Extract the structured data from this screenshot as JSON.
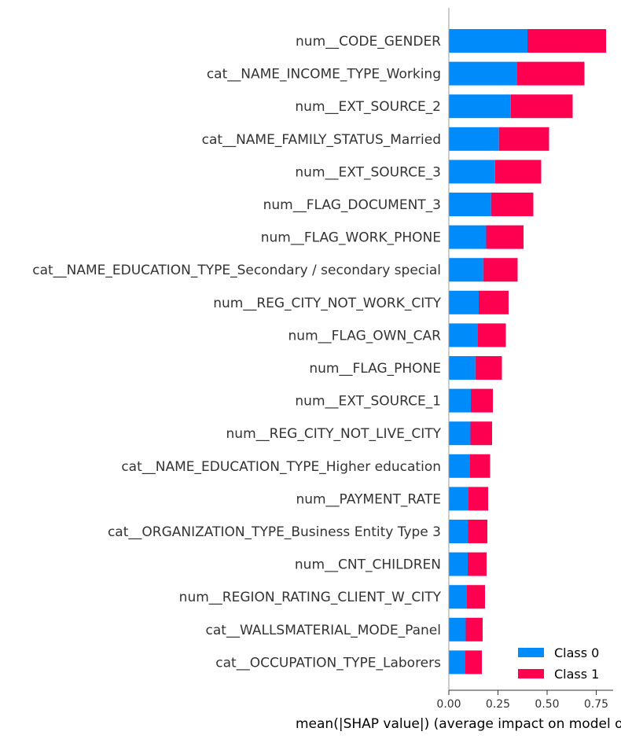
{
  "chart_data": {
    "type": "bar",
    "orientation": "horizontal",
    "stacked": true,
    "categories": [
      "num__CODE_GENDER",
      "cat__NAME_INCOME_TYPE_Working",
      "num__EXT_SOURCE_2",
      "cat__NAME_FAMILY_STATUS_Married",
      "num__EXT_SOURCE_3",
      "num__FLAG_DOCUMENT_3",
      "num__FLAG_WORK_PHONE",
      "cat__NAME_EDUCATION_TYPE_Secondary / secondary special",
      "num__REG_CITY_NOT_WORK_CITY",
      "num__FLAG_OWN_CAR",
      "num__FLAG_PHONE",
      "num__EXT_SOURCE_1",
      "num__REG_CITY_NOT_LIVE_CITY",
      "cat__NAME_EDUCATION_TYPE_Higher education",
      "num__PAYMENT_RATE",
      "cat__ORGANIZATION_TYPE_Business Entity Type 3",
      "num__CNT_CHILDREN",
      "num__REGION_RATING_CLIENT_W_CITY",
      "cat__WALLSMATERIAL_MODE_Panel",
      "cat__OCCUPATION_TYPE_Laborers"
    ],
    "series": [
      {
        "name": "Class 0",
        "color": "#008bfb",
        "values": [
          0.4,
          0.345,
          0.315,
          0.255,
          0.235,
          0.215,
          0.19,
          0.175,
          0.152,
          0.145,
          0.135,
          0.112,
          0.11,
          0.105,
          0.1,
          0.098,
          0.096,
          0.092,
          0.086,
          0.084
        ]
      },
      {
        "name": "Class 1",
        "color": "#ff0051",
        "values": [
          0.4,
          0.345,
          0.315,
          0.255,
          0.235,
          0.215,
          0.19,
          0.175,
          0.152,
          0.145,
          0.135,
          0.112,
          0.11,
          0.105,
          0.1,
          0.098,
          0.096,
          0.092,
          0.086,
          0.084
        ]
      }
    ],
    "xlabel": "mean(|SHAP value|) (average impact on model output magnitude)",
    "xticks": [
      "0.00",
      "0.25",
      "0.50",
      "0.75"
    ],
    "xtick_values": [
      0,
      0.25,
      0.5,
      0.75
    ],
    "xlim": [
      0,
      0.84
    ],
    "legend_placement": "bottom-right",
    "grid": false
  }
}
